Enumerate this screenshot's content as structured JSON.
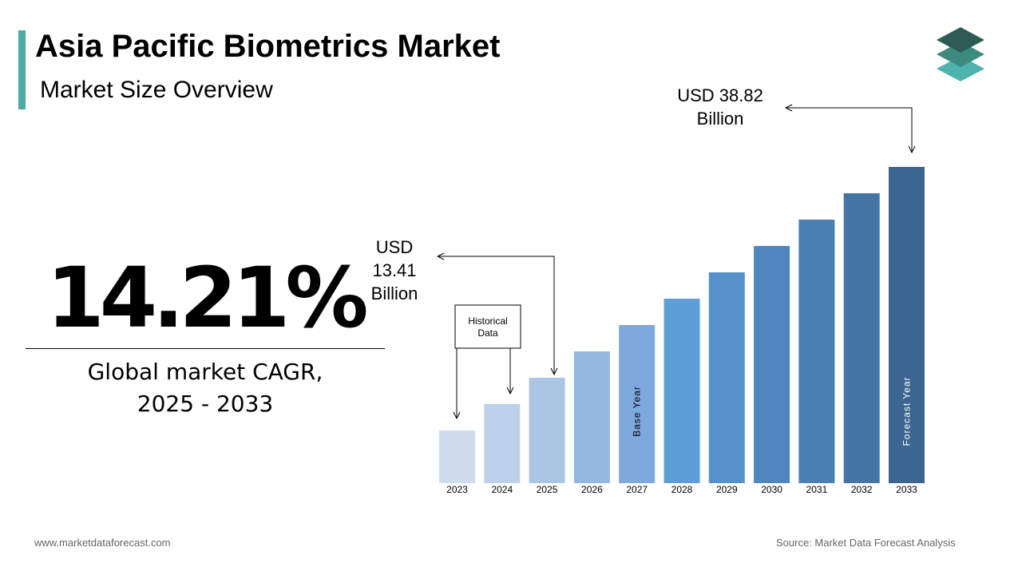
{
  "header": {
    "title": "Asia Pacific Biometrics Market",
    "subtitle": "Market Size Overview"
  },
  "cagr": {
    "value": "14.21%",
    "label_line1": "Global market CAGR,",
    "label_line2": "2025 - 2033"
  },
  "footer": {
    "website": "www.marketdataforecast.com",
    "source": "Source: Market Data Forecast Analysis"
  },
  "chart_data": {
    "type": "bar",
    "categories": [
      "2023",
      "2024",
      "2025",
      "2026",
      "2027",
      "2028",
      "2029",
      "2030",
      "2031",
      "2032",
      "2033"
    ],
    "values": [
      1,
      2,
      3,
      4,
      5,
      6,
      7,
      8,
      9,
      10,
      11
    ],
    "bar_colors": [
      "#cfdcee",
      "#bed1ea",
      "#abc5e5",
      "#93b7df",
      "#7ea9dc",
      "#5e9ed8",
      "#5691cb",
      "#4f86bd",
      "#4a7fb2",
      "#4575a6",
      "#3c6690"
    ],
    "bar_labels": {
      "2027": "Base Year",
      "2033": "Forecast Year"
    },
    "callouts": {
      "historical": {
        "line1": "Historical",
        "line2": "Data"
      },
      "value_2025": {
        "line1": "USD",
        "line2": "13.41",
        "line3": "Billion"
      },
      "value_2033": {
        "line1": "USD 38.82",
        "line2": "Billion"
      }
    }
  }
}
